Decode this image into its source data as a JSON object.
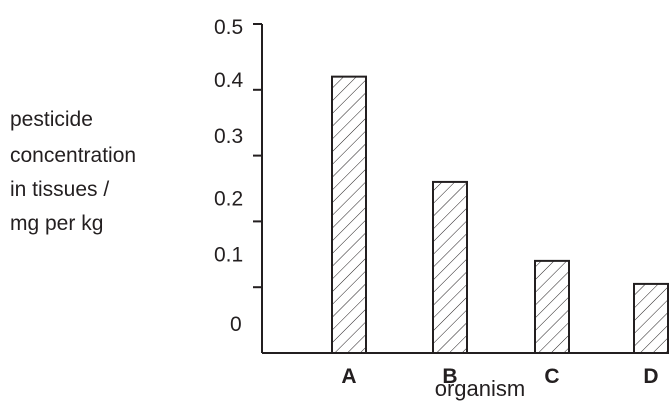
{
  "chart_data": {
    "type": "bar",
    "categories": [
      "A",
      "B",
      "C",
      "D"
    ],
    "values": [
      0.42,
      0.26,
      0.14,
      0.105
    ],
    "ylabel_lines": [
      "pesticide",
      "concentration",
      "in tissues / ",
      "mg per kg"
    ],
    "xlabel": "organism",
    "yticks": [
      "0",
      "0.1",
      "0.2",
      "0.3",
      "0.4",
      "0.5"
    ],
    "ylim": [
      0,
      0.5
    ],
    "grid": false,
    "bar_fill": "diagonal-hatch",
    "colors": {
      "ink": "#231f20",
      "background": "#ffffff"
    }
  }
}
